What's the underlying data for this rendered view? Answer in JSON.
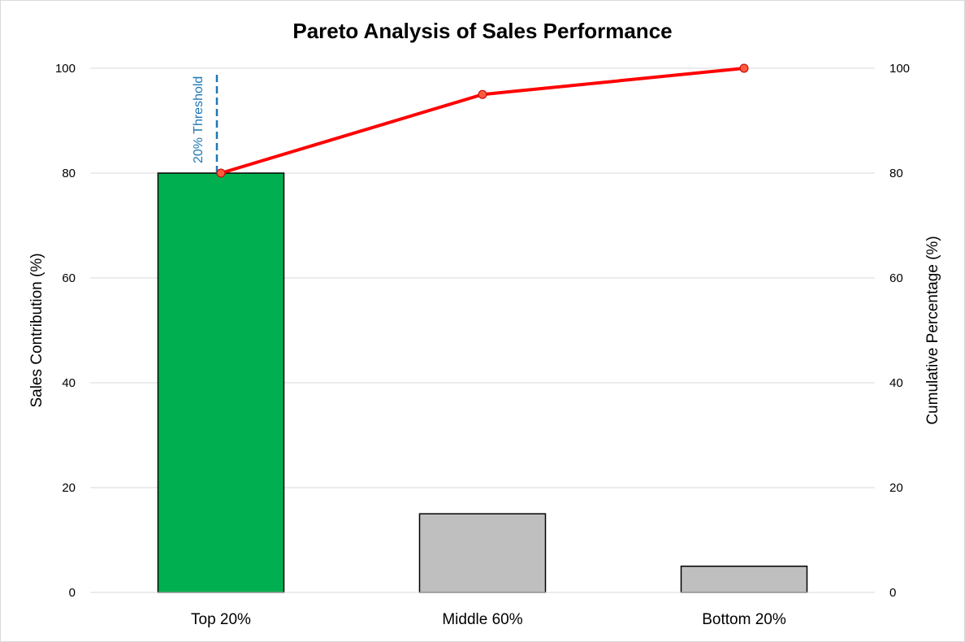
{
  "chart_data": {
    "type": "bar",
    "title": "Pareto Analysis of Sales Performance",
    "categories": [
      "Top 20%",
      "Middle 60%",
      "Bottom 20%"
    ],
    "series": [
      {
        "name": "Sales Contribution (%)",
        "type": "bar",
        "axis": "left",
        "values": [
          80,
          15,
          5
        ],
        "colors": [
          "#00b050",
          "#bfbfbf",
          "#bfbfbf"
        ]
      },
      {
        "name": "Cumulative Percentage (%)",
        "type": "line",
        "axis": "right",
        "values": [
          80,
          95,
          100
        ],
        "color": "#ff0000",
        "marker_color": "#ff5a3c"
      }
    ],
    "ylabel": "Sales Contribution (%)",
    "y2label": "Cumulative Percentage (%)",
    "ylim": [
      0,
      100
    ],
    "y2lim": [
      0,
      100
    ],
    "yticks": [
      0,
      20,
      40,
      60,
      80,
      100
    ],
    "y2ticks": [
      0,
      20,
      40,
      60,
      80,
      100
    ],
    "grid": true,
    "annotations": [
      {
        "text": "20% Threshold",
        "category": "Top 20%",
        "from": 80,
        "to": 99,
        "color": "#1f77b4",
        "style": "dashed"
      }
    ]
  }
}
